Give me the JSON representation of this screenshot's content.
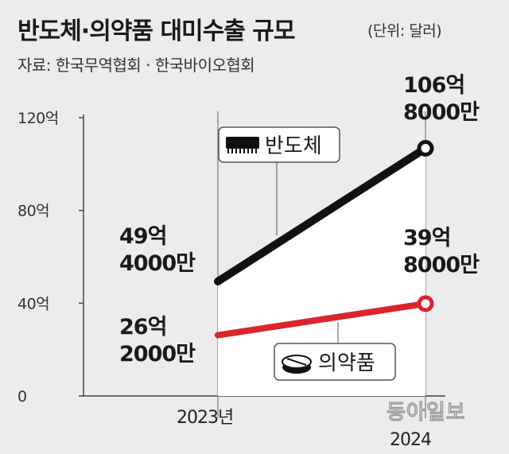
{
  "header": {
    "title": "반도체·의약품 대미수출 규모",
    "unit": "(단위: 달러)",
    "source": "자료: 한국무역협회 · 한국바이오협회"
  },
  "watermark": "동아일보",
  "chart_data": {
    "type": "line",
    "title": "반도체·의약품 대미수출 규모",
    "x": [
      "2023년",
      "2024"
    ],
    "y_ticks": [
      "0",
      "40억",
      "80억",
      "120억"
    ],
    "ylim": [
      0,
      120
    ],
    "grid": false,
    "series": [
      {
        "name": "반도체",
        "icon": "chip-icon",
        "color": "#111111",
        "values": [
          49.4,
          106.8
        ],
        "labels": [
          [
            "49억",
            "4000만"
          ],
          [
            "106억",
            "8000만"
          ]
        ]
      },
      {
        "name": "의약품",
        "icon": "pill-icon",
        "color": "#d8262c",
        "values": [
          26.2,
          39.8
        ],
        "labels": [
          [
            "26억",
            "2000만"
          ],
          [
            "39억",
            "8000만"
          ]
        ]
      }
    ]
  }
}
